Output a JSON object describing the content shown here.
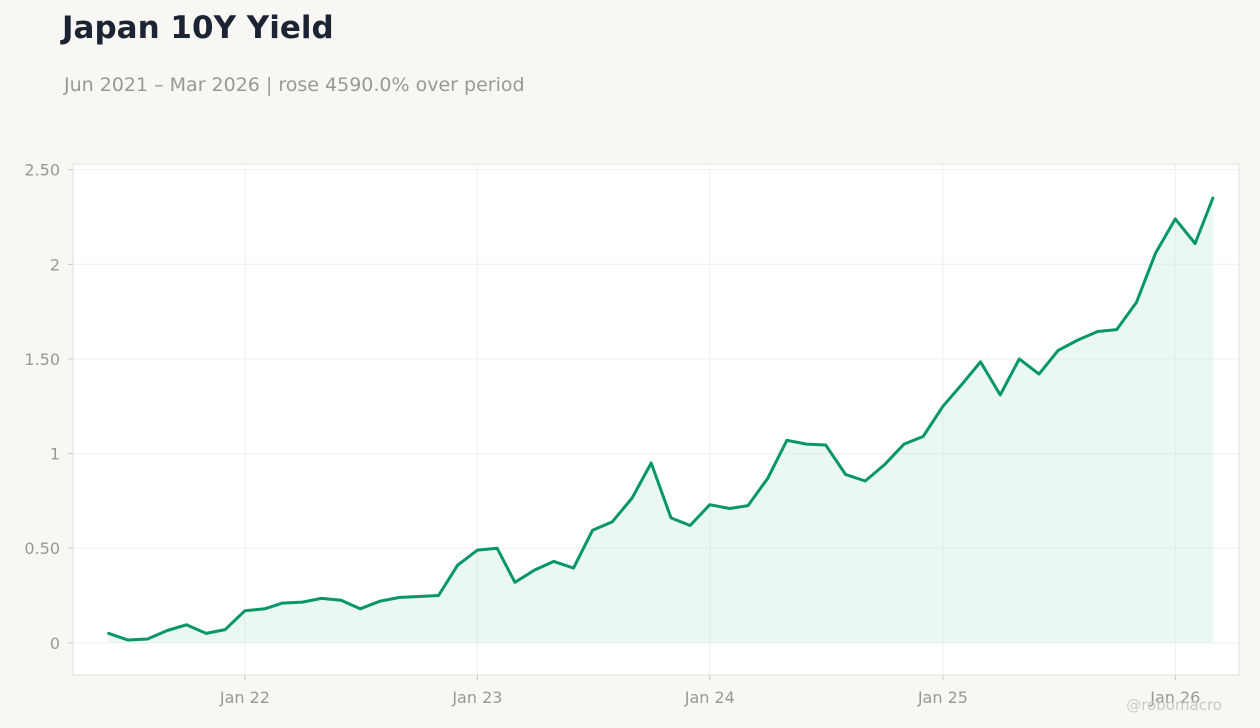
{
  "header": {
    "title": "Japan 10Y Yield",
    "subtitle": "Jun 2021 – Mar 2026 | rose 4590.0% over period"
  },
  "watermark": "@robomacro",
  "colors": {
    "line": "#059669",
    "area": "#d1ede2",
    "background": "#f8f7f4",
    "plot_background": "#ffffff",
    "grid": "#efefec",
    "frame": "#e2e0da"
  },
  "chart_data": {
    "type": "area",
    "title": "Japan 10Y Yield",
    "subtitle": "Jun 2021 – Mar 2026 | rose 4590.0% over period",
    "xlabel": "",
    "ylabel": "",
    "grid": true,
    "legend": "none",
    "ylim": [
      -0.17,
      2.53
    ],
    "xlim": [
      "2021-04-06",
      "2026-04-11"
    ],
    "y_ticks": [
      {
        "value": 0,
        "label": "0"
      },
      {
        "value": 0.5,
        "label": "0.50"
      },
      {
        "value": 1,
        "label": "1"
      },
      {
        "value": 1.5,
        "label": "1.50"
      },
      {
        "value": 2,
        "label": "2"
      },
      {
        "value": 2.5,
        "label": "2.50"
      }
    ],
    "x_ticks": [
      {
        "value": "2022-01-01",
        "label": "Jan 22"
      },
      {
        "value": "2023-01-01",
        "label": "Jan 23"
      },
      {
        "value": "2024-01-01",
        "label": "Jan 24"
      },
      {
        "value": "2025-01-01",
        "label": "Jan 25"
      },
      {
        "value": "2026-01-01",
        "label": "Jan 26"
      }
    ],
    "series": [
      {
        "x": [
          "2021-06-01",
          "2021-07-01",
          "2021-08-01",
          "2021-09-01",
          "2021-10-01",
          "2021-11-01",
          "2021-12-01",
          "2022-01-01",
          "2022-02-01",
          "2022-03-01",
          "2022-04-01",
          "2022-05-01",
          "2022-06-01",
          "2022-07-01",
          "2022-08-01",
          "2022-09-01",
          "2022-10-01",
          "2022-11-01",
          "2022-12-01",
          "2023-01-01",
          "2023-02-01",
          "2023-03-01",
          "2023-04-01",
          "2023-05-01",
          "2023-06-01",
          "2023-07-01",
          "2023-08-01",
          "2023-09-01",
          "2023-10-01",
          "2023-11-01",
          "2023-12-01",
          "2024-01-01",
          "2024-02-01",
          "2024-03-01",
          "2024-04-01",
          "2024-05-01",
          "2024-06-01",
          "2024-07-01",
          "2024-08-01",
          "2024-09-01",
          "2024-10-01",
          "2024-11-01",
          "2024-12-01",
          "2025-01-01",
          "2025-02-01",
          "2025-03-01",
          "2025-04-01",
          "2025-05-01",
          "2025-06-01",
          "2025-07-01",
          "2025-08-01",
          "2025-09-01",
          "2025-10-01",
          "2025-11-01",
          "2025-12-01",
          "2026-01-01",
          "2026-02-01",
          "2026-03-01"
        ],
        "values": [
          0.05,
          0.015,
          0.02,
          0.065,
          0.095,
          0.05,
          0.07,
          0.17,
          0.18,
          0.21,
          0.215,
          0.235,
          0.225,
          0.18,
          0.22,
          0.24,
          0.245,
          0.25,
          0.41,
          0.49,
          0.5,
          0.32,
          0.385,
          0.43,
          0.395,
          0.595,
          0.64,
          0.765,
          0.95,
          0.66,
          0.62,
          0.73,
          0.71,
          0.725,
          0.87,
          1.07,
          1.05,
          1.045,
          0.89,
          0.855,
          0.94,
          1.05,
          1.09,
          1.25,
          1.37,
          1.485,
          1.31,
          1.5,
          1.42,
          1.545,
          1.6,
          1.645,
          1.655,
          1.8,
          2.06,
          2.24,
          2.11,
          2.35
        ]
      }
    ]
  }
}
